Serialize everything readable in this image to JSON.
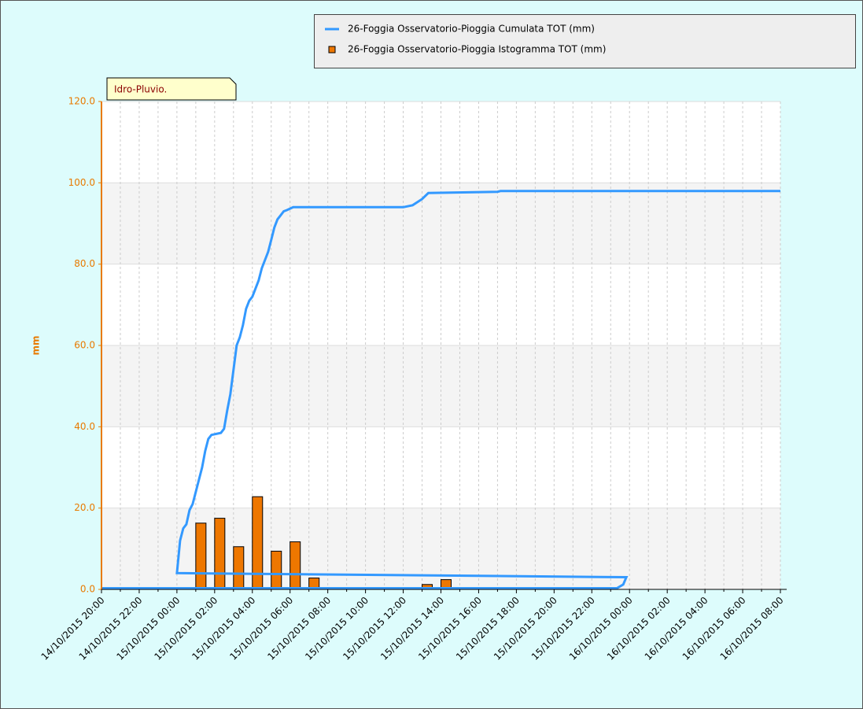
{
  "chart_data": {
    "type": "line_bar",
    "annotation": "Idro-Pluvio.",
    "ylabel": "mm",
    "xlim": [
      "14/10/2015 20:00",
      "16/10/2015 08:00"
    ],
    "xticks": [
      "14/10/2015 20:00",
      "14/10/2015 22:00",
      "15/10/2015 00:00",
      "15/10/2015 02:00",
      "15/10/2015 04:00",
      "15/10/2015 06:00",
      "15/10/2015 08:00",
      "15/10/2015 10:00",
      "15/10/2015 12:00",
      "15/10/2015 14:00",
      "15/10/2015 16:00",
      "15/10/2015 18:00",
      "15/10/2015 20:00",
      "15/10/2015 22:00",
      "16/10/2015 00:00",
      "16/10/2015 02:00",
      "16/10/2015 04:00",
      "16/10/2015 06:00",
      "16/10/2015 08:00"
    ],
    "xminorticks": [
      "14/10/2015 21:00",
      "14/10/2015 23:00",
      "15/10/2015 01:00",
      "15/10/2015 03:00",
      "15/10/2015 05:00",
      "15/10/2015 07:00",
      "15/10/2015 09:00",
      "15/10/2015 11:00",
      "15/10/2015 13:00",
      "15/10/2015 15:00",
      "15/10/2015 17:00",
      "15/10/2015 19:00",
      "15/10/2015 21:00",
      "15/10/2015 23:00",
      "16/10/2015 01:00",
      "16/10/2015 03:00",
      "16/10/2015 05:00",
      "16/10/2015 07:00"
    ],
    "ylim": [
      0,
      120
    ],
    "yticks": [
      {
        "value": 0,
        "label": "0.0"
      },
      {
        "value": 20,
        "label": "20.0"
      },
      {
        "value": 40,
        "label": "40.0"
      },
      {
        "value": 60,
        "label": "60.0"
      },
      {
        "value": 80,
        "label": "80.0"
      },
      {
        "value": 100,
        "label": "100.0"
      },
      {
        "value": 120,
        "label": "120.0"
      }
    ],
    "grid": true,
    "legend": "top-right",
    "series": [
      {
        "name": "26-Foggia Osservatorio-Pioggia Cumulata TOT (mm)",
        "type": "line",
        "color": "#3399ff",
        "x": [
          "14/10/2015 20:00",
          "15/10/2015 23:20",
          "15/10/2015 23:40",
          "15/10/2015 23:50",
          "15/10/2015 00:00",
          "15/10/2015 00:10",
          "15/10/2015 00:20",
          "15/10/2015 00:30",
          "15/10/2015 00:40",
          "15/10/2015 00:50",
          "15/10/2015 01:00",
          "15/10/2015 01:10",
          "15/10/2015 01:20",
          "15/10/2015 01:30",
          "15/10/2015 01:40",
          "15/10/2015 01:50",
          "15/10/2015 02:20",
          "15/10/2015 02:30",
          "15/10/2015 02:40",
          "15/10/2015 02:50",
          "15/10/2015 03:00",
          "15/10/2015 03:10",
          "15/10/2015 03:20",
          "15/10/2015 03:30",
          "15/10/2015 03:40",
          "15/10/2015 03:50",
          "15/10/2015 04:00",
          "15/10/2015 04:10",
          "15/10/2015 04:20",
          "15/10/2015 04:30",
          "15/10/2015 04:40",
          "15/10/2015 04:50",
          "15/10/2015 05:00",
          "15/10/2015 05:10",
          "15/10/2015 05:20",
          "15/10/2015 05:30",
          "15/10/2015 05:40",
          "15/10/2015 05:50",
          "15/10/2015 06:10",
          "15/10/2015 12:00",
          "15/10/2015 12:30",
          "15/10/2015 13:00",
          "15/10/2015 13:20",
          "15/10/2015 17:00",
          "15/10/2015 17:10",
          "16/10/2015 08:00"
        ],
        "values": [
          0.3,
          0.3,
          1.2,
          3,
          4,
          12,
          15,
          16,
          19.5,
          21,
          24,
          27,
          30,
          34,
          37,
          38,
          38.5,
          39.5,
          44,
          48,
          54,
          60,
          62,
          65,
          69,
          71,
          72,
          74,
          76,
          79,
          81,
          83,
          86,
          89,
          91,
          92,
          93,
          93.3,
          94,
          94,
          94.5,
          96,
          97.5,
          97.8,
          98,
          98
        ]
      },
      {
        "name": "26-Foggia Osservatorio-Pioggia Istogramma TOT (mm)",
        "type": "bar",
        "color": "#ee7700",
        "x": [
          "15/10/2015 01:00",
          "15/10/2015 02:00",
          "15/10/2015 03:00",
          "15/10/2015 04:00",
          "15/10/2015 05:00",
          "15/10/2015 06:00",
          "15/10/2015 07:00",
          "15/10/2015 13:00",
          "15/10/2015 14:00",
          "15/10/2015 18:00"
        ],
        "values": [
          16.3,
          17.5,
          10.5,
          22.8,
          9.4,
          11.7,
          2.8,
          1.2,
          2.4,
          0.4
        ]
      }
    ]
  }
}
